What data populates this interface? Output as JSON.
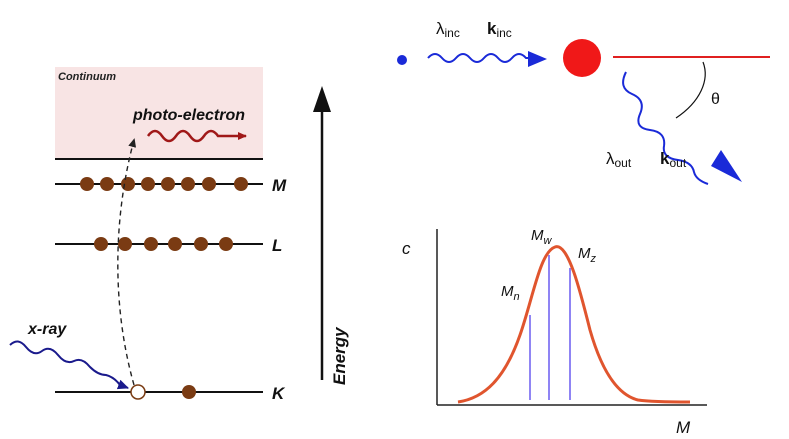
{
  "photoelectric": {
    "continuum_label": "Continuum",
    "photo_electron_label": "photo-electron",
    "xray_label": "x-ray",
    "energy_label": "Energy",
    "shells": [
      {
        "name": "M",
        "electrons": 8
      },
      {
        "name": "L",
        "electrons": 6
      },
      {
        "name": "K",
        "electrons": 2,
        "vacancy": true
      }
    ],
    "colors": {
      "continuum_fill": "#f8e4e4",
      "electron": "#7a3b13",
      "photo_electron": "#a01818",
      "xray": "#1a1a8c"
    }
  },
  "scattering": {
    "incident_wavelength": "λ",
    "incident_wavelength_sub": "inc",
    "incident_wavevector": "k",
    "incident_wavevector_sub": "inc",
    "outgoing_wavelength": "λ",
    "outgoing_wavelength_sub": "out",
    "outgoing_wavevector": "k",
    "outgoing_wavevector_sub": "out",
    "angle_label": "θ",
    "colors": {
      "particle": "#f01818",
      "wave": "#1a2ad8",
      "reference_line": "#e02020"
    }
  },
  "distribution": {
    "y_label": "c",
    "x_label": "M",
    "markers": [
      {
        "symbol": "M",
        "sub": "n"
      },
      {
        "symbol": "M",
        "sub": "w"
      },
      {
        "symbol": "M",
        "sub": "z"
      }
    ],
    "colors": {
      "curve": "#e0552e",
      "markers": "#6a5cf0"
    }
  }
}
